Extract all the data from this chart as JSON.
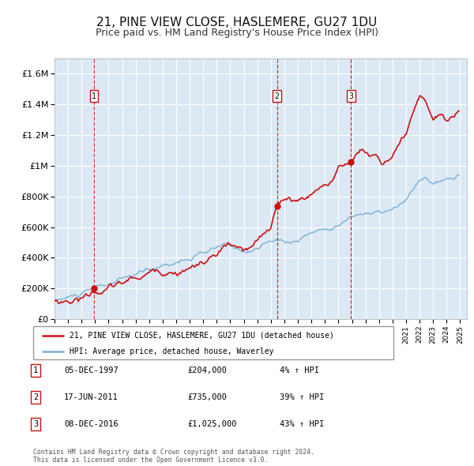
{
  "title": "21, PINE VIEW CLOSE, HASLEMERE, GU27 1DU",
  "subtitle": "Price paid vs. HM Land Registry's House Price Index (HPI)",
  "title_fontsize": 11,
  "subtitle_fontsize": 9,
  "background_color": "#ffffff",
  "plot_bg_color": "#dce9f5",
  "grid_color": "#ffffff",
  "sale_color": "#cc1111",
  "hpi_color": "#7ab0d4",
  "sale_label": "21, PINE VIEW CLOSE, HASLEMERE, GU27 1DU (detached house)",
  "hpi_label": "HPI: Average price, detached house, Waverley",
  "ylabel_ticks": [
    "£0",
    "£200K",
    "£400K",
    "£600K",
    "£800K",
    "£1M",
    "£1.2M",
    "£1.4M",
    "£1.6M"
  ],
  "ytick_values": [
    0,
    200000,
    400000,
    600000,
    800000,
    1000000,
    1200000,
    1400000,
    1600000
  ],
  "ylim": [
    0,
    1700000
  ],
  "xlim_start": 1995.0,
  "xlim_end": 2025.5,
  "sale_transactions": [
    {
      "label": "1",
      "date_num": 1997.92,
      "price": 204000,
      "pct": "4%",
      "date_str": "05-DEC-1997",
      "price_str": "£204,000"
    },
    {
      "label": "2",
      "date_num": 2011.46,
      "price": 735000,
      "pct": "39%",
      "date_str": "17-JUN-2011",
      "price_str": "£735,000"
    },
    {
      "label": "3",
      "date_num": 2016.92,
      "price": 1025000,
      "pct": "43%",
      "date_str": "08-DEC-2016",
      "price_str": "£1,025,000"
    }
  ],
  "footer_line1": "Contains HM Land Registry data © Crown copyright and database right 2024.",
  "footer_line2": "This data is licensed under the Open Government Licence v3.0.",
  "hpi_anchors": [
    [
      1995.0,
      125000
    ],
    [
      1997.0,
      160000
    ],
    [
      1998.0,
      185000
    ],
    [
      2000.0,
      230000
    ],
    [
      2002.0,
      280000
    ],
    [
      2004.0,
      345000
    ],
    [
      2005.0,
      370000
    ],
    [
      2006.5,
      400000
    ],
    [
      2007.5,
      430000
    ],
    [
      2008.5,
      390000
    ],
    [
      2009.5,
      390000
    ],
    [
      2010.5,
      430000
    ],
    [
      2011.0,
      445000
    ],
    [
      2011.5,
      450000
    ],
    [
      2012.0,
      440000
    ],
    [
      2013.0,
      460000
    ],
    [
      2014.0,
      510000
    ],
    [
      2015.0,
      540000
    ],
    [
      2016.0,
      580000
    ],
    [
      2017.0,
      630000
    ],
    [
      2018.0,
      660000
    ],
    [
      2019.0,
      650000
    ],
    [
      2020.0,
      660000
    ],
    [
      2021.0,
      700000
    ],
    [
      2021.5,
      760000
    ],
    [
      2022.0,
      820000
    ],
    [
      2022.5,
      850000
    ],
    [
      2023.0,
      800000
    ],
    [
      2024.0,
      810000
    ],
    [
      2025.0,
      840000
    ]
  ],
  "sale_anchors": [
    [
      1995.0,
      118000
    ],
    [
      1996.0,
      130000
    ],
    [
      1997.0,
      155000
    ],
    [
      1997.92,
      204000
    ],
    [
      1998.5,
      215000
    ],
    [
      1999.5,
      235000
    ],
    [
      2001.0,
      270000
    ],
    [
      2003.0,
      330000
    ],
    [
      2005.0,
      380000
    ],
    [
      2006.0,
      415000
    ],
    [
      2007.0,
      450000
    ],
    [
      2007.8,
      510000
    ],
    [
      2008.5,
      460000
    ],
    [
      2009.0,
      440000
    ],
    [
      2009.5,
      445000
    ],
    [
      2010.0,
      470000
    ],
    [
      2010.5,
      510000
    ],
    [
      2011.0,
      550000
    ],
    [
      2011.46,
      735000
    ],
    [
      2011.8,
      760000
    ],
    [
      2012.5,
      740000
    ],
    [
      2013.5,
      760000
    ],
    [
      2014.5,
      840000
    ],
    [
      2015.5,
      900000
    ],
    [
      2016.0,
      960000
    ],
    [
      2016.92,
      1025000
    ],
    [
      2017.3,
      1080000
    ],
    [
      2017.8,
      1100000
    ],
    [
      2018.3,
      1060000
    ],
    [
      2018.8,
      1080000
    ],
    [
      2019.3,
      1020000
    ],
    [
      2019.8,
      1050000
    ],
    [
      2020.5,
      1100000
    ],
    [
      2021.0,
      1160000
    ],
    [
      2021.5,
      1260000
    ],
    [
      2022.0,
      1350000
    ],
    [
      2022.5,
      1300000
    ],
    [
      2023.0,
      1210000
    ],
    [
      2023.5,
      1240000
    ],
    [
      2024.0,
      1190000
    ],
    [
      2024.5,
      1210000
    ],
    [
      2025.0,
      1270000
    ]
  ]
}
